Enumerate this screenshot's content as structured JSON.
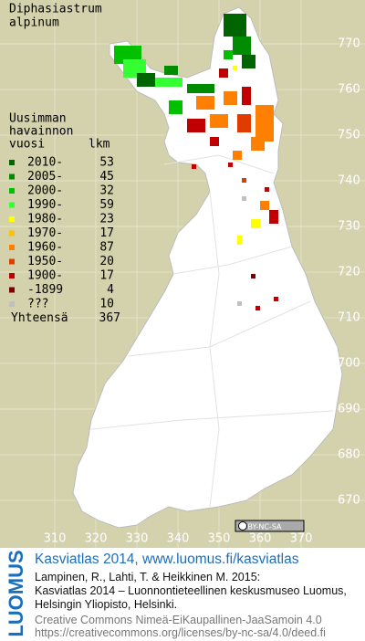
{
  "title": [
    "Diphasiastrum",
    "alpinum"
  ],
  "legend": {
    "heading": [
      "Uusimman",
      "havainnon",
      "vuosi"
    ],
    "count_heading": "lkm",
    "items": [
      {
        "label": "2010-",
        "count": 53,
        "color": "#006400"
      },
      {
        "label": "2005-",
        "count": 45,
        "color": "#008c00"
      },
      {
        "label": "2000-",
        "count": 32,
        "color": "#00c000"
      },
      {
        "label": "1990-",
        "count": 59,
        "color": "#33ff33"
      },
      {
        "label": "1980-",
        "count": 23,
        "color": "#ffff00"
      },
      {
        "label": "1970-",
        "count": 17,
        "color": "#ffc000"
      },
      {
        "label": "1960-",
        "count": 87,
        "color": "#ff7f00"
      },
      {
        "label": "1950-",
        "count": 20,
        "color": "#e03c00"
      },
      {
        "label": "1900-",
        "count": 17,
        "color": "#c00000"
      },
      {
        "label": "-1899",
        "count": 4,
        "color": "#800000"
      },
      {
        "label": "???",
        "count": 10,
        "color": "#c0c0c0"
      }
    ],
    "total_label": "Yhteensä",
    "total": 367
  },
  "grid": {
    "y_labels": [
      770,
      760,
      750,
      740,
      730,
      720,
      710,
      700,
      690,
      680,
      670
    ],
    "x_labels": [
      310,
      320,
      330,
      340,
      350,
      360,
      370
    ]
  },
  "license_badge": "BY-NC-SA",
  "footer": {
    "logo": "LUOMUS",
    "headline": "Kasviatlas 2014, www.luomus.fi/kasviatlas",
    "citation": [
      "Lampinen, R., Lahti, T. & Heikkinen M. 2015:",
      "Kasviatlas 2014 – Luonnontieteellinen keskusmuseo Luomus,",
      "Helsingin Yliopisto, Helsinki."
    ],
    "license": [
      "Creative Commons Nimeä-EiKaupallinen-JaaSamoin 4.0",
      "https://creativecommons.org/licenses/by-nc-sa/4.0/deed.fi"
    ]
  }
}
